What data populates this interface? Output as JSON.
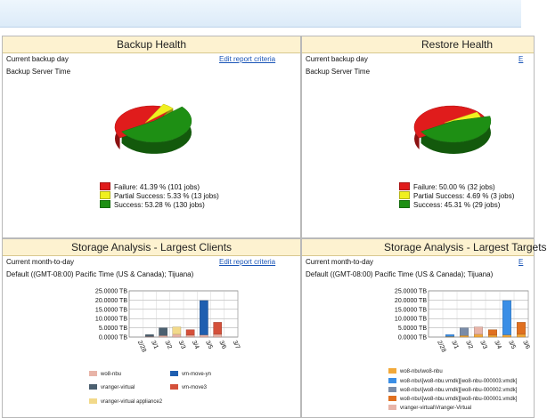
{
  "panels": {
    "backup": {
      "title": "Backup Health",
      "period": "Current backup day",
      "timezone": "Backup Server Time",
      "edit_link": "Edit report criteria",
      "legend": [
        {
          "label": "Failure: 41.39 % (101 jobs)",
          "color": "#e01c1c"
        },
        {
          "label": "Partial Success: 5.33 % (13 jobs)",
          "color": "#f0f020"
        },
        {
          "label": "Success: 53.28 % (130 jobs)",
          "color": "#1e8f14"
        }
      ]
    },
    "restore": {
      "title": "Restore Health",
      "period": "Current backup day",
      "timezone": "Backup Server Time",
      "edit_link": "E",
      "legend": [
        {
          "label": "Failure: 50.00 % (32 jobs)",
          "color": "#e01c1c"
        },
        {
          "label": "Partial Success: 4.69 % (3 jobs)",
          "color": "#f0f020"
        },
        {
          "label": "Success: 45.31 % (29 jobs)",
          "color": "#1e8f14"
        }
      ]
    },
    "clients": {
      "title": "Storage Analysis - Largest Clients",
      "period": "Current month-to-day",
      "timezone": "Default ((GMT-08:00) Pacific Time (US & Canada); Tijuana)",
      "edit_link": "Edit report criteria",
      "legend": [
        {
          "label": "wo8-nbu",
          "color": "#e8b4a8"
        },
        {
          "label": "vm-move-yn",
          "color": "#1f5fb0"
        },
        {
          "label": "vranger-virtual",
          "color": "#4c6070"
        },
        {
          "label": "vm-move3",
          "color": "#d4503a"
        },
        {
          "label": "vranger-virtual appliance2",
          "color": "#f2d98a"
        }
      ]
    },
    "targets": {
      "title": "Storage Analysis - Largest Targets",
      "period": "Current month-to-day",
      "timezone": "Default ((GMT-08:00) Pacific Time (US & Canada); Tijuana)",
      "edit_link": "E",
      "legend": [
        {
          "label": "wo8-nbu\\wo8-nbu",
          "color": "#f2a93a"
        },
        {
          "label": "wo8-nbu\\[wo8-nbu.vmdk][wo8-nbu-000003.vmdk]",
          "color": "#3a8ee6"
        },
        {
          "label": "wo8-nbu\\[wo8-nbu.vmdk][wo8-nbu-000002.vmdk]",
          "color": "#7a8ca8"
        },
        {
          "label": "wo8-nbu\\[wo8-nbu.vmdk][wo8-nbu-000001.vmdk]",
          "color": "#e07020"
        },
        {
          "label": "vranger-virtual\\Vranger-Virtual",
          "color": "#e8b4a8"
        }
      ]
    }
  },
  "chart_data": [
    {
      "type": "pie",
      "title": "Backup Health",
      "categories": [
        "Failure",
        "Partial Success",
        "Success"
      ],
      "values": [
        41.39,
        5.33,
        53.28
      ],
      "jobs": [
        101,
        13,
        130
      ],
      "colors": [
        "#e01c1c",
        "#f0f020",
        "#1e8f14"
      ]
    },
    {
      "type": "pie",
      "title": "Restore Health",
      "categories": [
        "Failure",
        "Partial Success",
        "Success"
      ],
      "values": [
        50.0,
        4.69,
        45.31
      ],
      "jobs": [
        32,
        3,
        29
      ],
      "colors": [
        "#e01c1c",
        "#f0f020",
        "#1e8f14"
      ]
    },
    {
      "type": "bar",
      "title": "Storage Analysis - Largest Clients",
      "categories": [
        "2/28",
        "3/1",
        "3/2",
        "3/3",
        "3/4",
        "3/5",
        "3/6",
        "3/7"
      ],
      "yticks": [
        "25.0000 TB",
        "20.0000 TB",
        "15.0000 TB",
        "10.0000 TB",
        "5.0000 TB",
        "0.0000 TB"
      ],
      "ylim": [
        0,
        25
      ],
      "series": [
        {
          "name": "wo8-nbu",
          "color": "#e8b4a8",
          "values": [
            0,
            0.3,
            0.8,
            1.5,
            1.0,
            1.2,
            1.5,
            0
          ]
        },
        {
          "name": "vm-move-yn",
          "color": "#1f5fb0",
          "values": [
            0,
            0,
            0,
            0,
            0,
            18.5,
            0,
            0
          ]
        },
        {
          "name": "vranger-virtual",
          "color": "#4c6070",
          "values": [
            0,
            1.0,
            4.2,
            0,
            0,
            0,
            0,
            0
          ]
        },
        {
          "name": "vm-move3",
          "color": "#d4503a",
          "values": [
            0,
            0,
            0,
            0,
            3.0,
            0,
            6.5,
            0
          ]
        },
        {
          "name": "vranger-virtual appliance2",
          "color": "#f2d98a",
          "values": [
            0,
            0,
            0,
            4.0,
            0,
            0,
            0,
            0
          ]
        }
      ]
    },
    {
      "type": "bar",
      "title": "Storage Analysis - Largest Targets",
      "categories": [
        "2/28",
        "3/1",
        "3/2",
        "3/3",
        "3/4",
        "3/5",
        "3/6"
      ],
      "yticks": [
        "25.0000 TB",
        "20.0000 TB",
        "15.0000 TB",
        "10.0000 TB",
        "5.0000 TB",
        "0.0000 TB"
      ],
      "ylim": [
        0,
        25
      ],
      "series": [
        {
          "name": "wo8-nbu\\wo8-nbu",
          "color": "#f2a93a",
          "values": [
            0,
            0.3,
            0.8,
            1.5,
            1.0,
            1.2,
            1.5
          ]
        },
        {
          "name": "wo8-nbu\\[wo8-nbu.vmdk][wo8-nbu-000003.vmdk]",
          "color": "#3a8ee6",
          "values": [
            0,
            1.0,
            0,
            0,
            0,
            18.5,
            0
          ]
        },
        {
          "name": "wo8-nbu\\[wo8-nbu.vmdk][wo8-nbu-000002.vmdk]",
          "color": "#7a8ca8",
          "values": [
            0,
            0,
            4.2,
            0,
            0,
            0,
            0
          ]
        },
        {
          "name": "wo8-nbu\\[wo8-nbu.vmdk][wo8-nbu-000001.vmdk]",
          "color": "#e07020",
          "values": [
            0,
            0,
            0,
            0,
            3.0,
            0,
            6.5
          ]
        },
        {
          "name": "vranger-virtual\\Vranger-Virtual",
          "color": "#e8b4a8",
          "values": [
            0,
            0,
            0,
            4.0,
            0,
            0,
            0
          ]
        }
      ]
    }
  ]
}
